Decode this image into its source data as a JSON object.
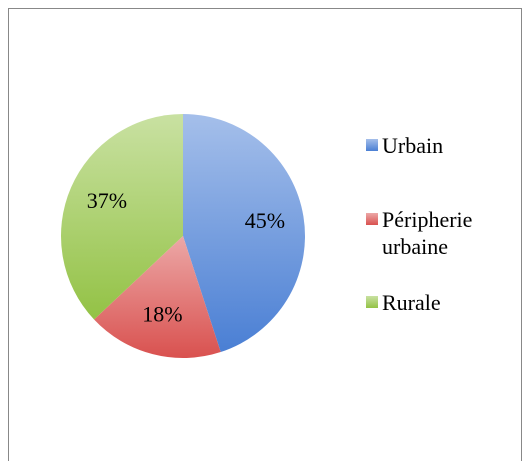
{
  "chart_data": {
    "type": "pie",
    "categories": [
      "Urbain",
      "Péripherie urbaine",
      "Rurale"
    ],
    "values": [
      45,
      18,
      37
    ],
    "value_labels": [
      "45%",
      "18%",
      "37%"
    ],
    "colors": [
      "#4a7fd4",
      "#d9514f",
      "#93c245"
    ],
    "legend": "right"
  }
}
